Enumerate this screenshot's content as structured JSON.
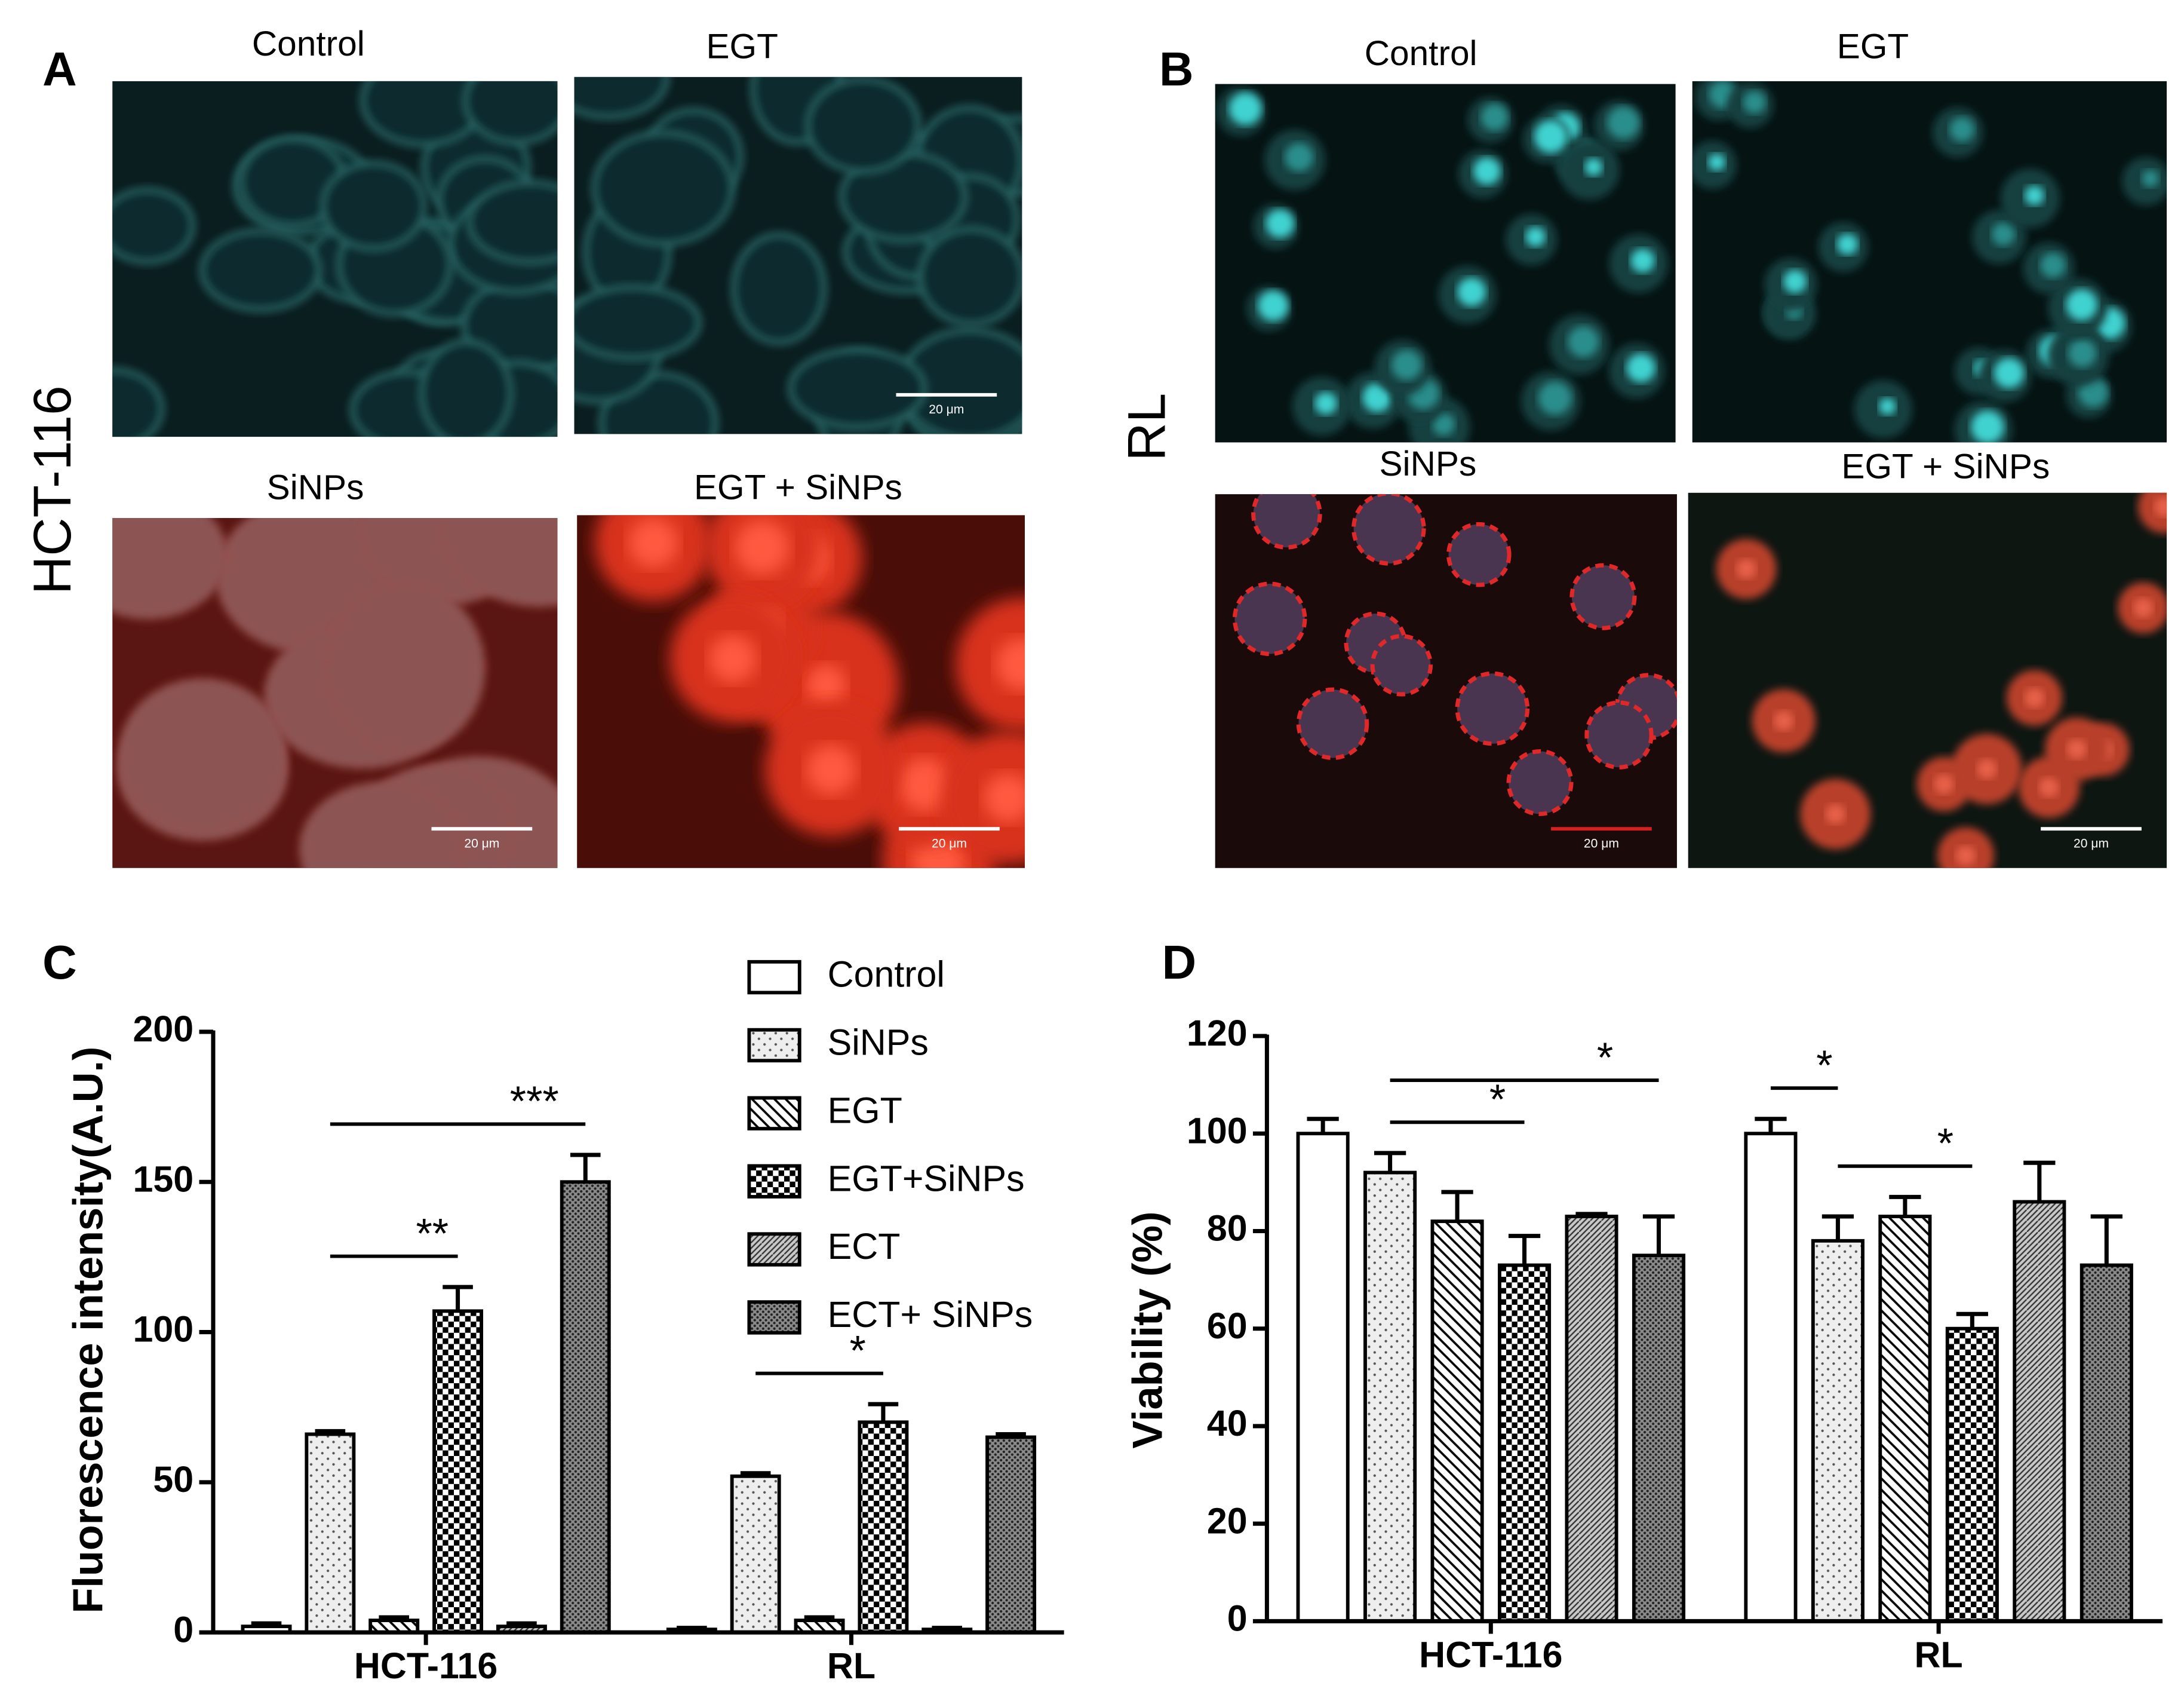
{
  "panels": [
    {
      "label": "A",
      "row_label": "HCT-116",
      "images": [
        {
          "title": "Control"
        },
        {
          "title": "EGT",
          "scale_bar": "20 μm"
        },
        {
          "title": "SiNPs",
          "scale_bar": "20 μm"
        },
        {
          "title": "EGT + SiNPs",
          "scale_bar": "20 μm"
        }
      ]
    },
    {
      "label": "B",
      "row_label": "RL",
      "images": [
        {
          "title": "Control"
        },
        {
          "title": "EGT"
        },
        {
          "title": "SiNPs",
          "scale_bar": "20 μm"
        },
        {
          "title": "EGT + SiNPs",
          "scale_bar": "20 μm"
        }
      ]
    }
  ],
  "chart_data": [
    {
      "type": "bar",
      "panel_label": "C",
      "ylabel": "Fluorescence intensity(A.U.)",
      "categories": [
        "HCT-116",
        "RL"
      ],
      "ylim": [
        0,
        200
      ],
      "yticks": [
        0,
        50,
        100,
        150,
        200
      ],
      "legend": "upper right",
      "series": [
        {
          "name": "Control",
          "color": "#ffffff",
          "pattern": "none",
          "values": [
            2,
            1
          ],
          "errors": [
            1,
            0.5
          ]
        },
        {
          "name": "SiNPs",
          "color": "#eeeeee",
          "pattern": "dots",
          "values": [
            66,
            52
          ],
          "errors": [
            1,
            1
          ]
        },
        {
          "name": "EGT",
          "color": "#ffffff",
          "pattern": "hatch",
          "values": [
            4,
            4
          ],
          "errors": [
            1,
            1
          ]
        },
        {
          "name": "EGT+SiNPs",
          "color": "#ffffff",
          "pattern": "checker",
          "values": [
            107,
            70
          ],
          "errors": [
            8,
            6
          ]
        },
        {
          "name": "ECT",
          "color": "#c8c8c8",
          "pattern": "fine-hatch",
          "values": [
            2,
            1
          ],
          "errors": [
            1,
            0.5
          ]
        },
        {
          "name": "ECT+ SiNPs",
          "color": "#8a8a8a",
          "pattern": "dense-dots",
          "values": [
            150,
            65
          ],
          "errors": [
            9,
            1
          ]
        }
      ],
      "annotations": [
        {
          "text": "**",
          "category": 0,
          "from": 1,
          "to": 3
        },
        {
          "text": "***",
          "category": 0,
          "from": 1,
          "to": 5
        },
        {
          "text": "*",
          "category": 1,
          "from": 1,
          "to": 3
        }
      ]
    },
    {
      "type": "bar",
      "panel_label": "D",
      "ylabel": "Viability (%)",
      "categories": [
        "HCT-116",
        "RL"
      ],
      "ylim": [
        0,
        120
      ],
      "yticks": [
        0,
        20,
        40,
        60,
        80,
        100,
        120
      ],
      "series": [
        {
          "color": "#ffffff",
          "pattern": "none",
          "values": [
            100,
            100
          ],
          "errors": [
            3,
            3
          ]
        },
        {
          "color": "#eeeeee",
          "pattern": "dots",
          "values": [
            92,
            78
          ],
          "errors": [
            4,
            5
          ]
        },
        {
          "color": "#ffffff",
          "pattern": "hatch",
          "values": [
            82,
            83
          ],
          "errors": [
            6,
            4
          ]
        },
        {
          "color": "#ffffff",
          "pattern": "checker",
          "values": [
            73,
            60
          ],
          "errors": [
            6,
            3
          ]
        },
        {
          "color": "#c8c8c8",
          "pattern": "fine-hatch",
          "values": [
            83,
            86
          ],
          "errors": [
            0.5,
            8
          ]
        },
        {
          "color": "#8a8a8a",
          "pattern": "dense-dots",
          "values": [
            75,
            73
          ],
          "errors": [
            8,
            10
          ]
        }
      ],
      "annotations": [
        {
          "text": "*",
          "category": 0,
          "from": 1,
          "to": 3
        },
        {
          "text": "*",
          "category": 0,
          "from": 1,
          "to": 5
        },
        {
          "text": "*",
          "category": 1,
          "from": 0,
          "to": 1
        },
        {
          "text": "*",
          "category": 1,
          "from": 1,
          "to": 3
        }
      ]
    }
  ]
}
